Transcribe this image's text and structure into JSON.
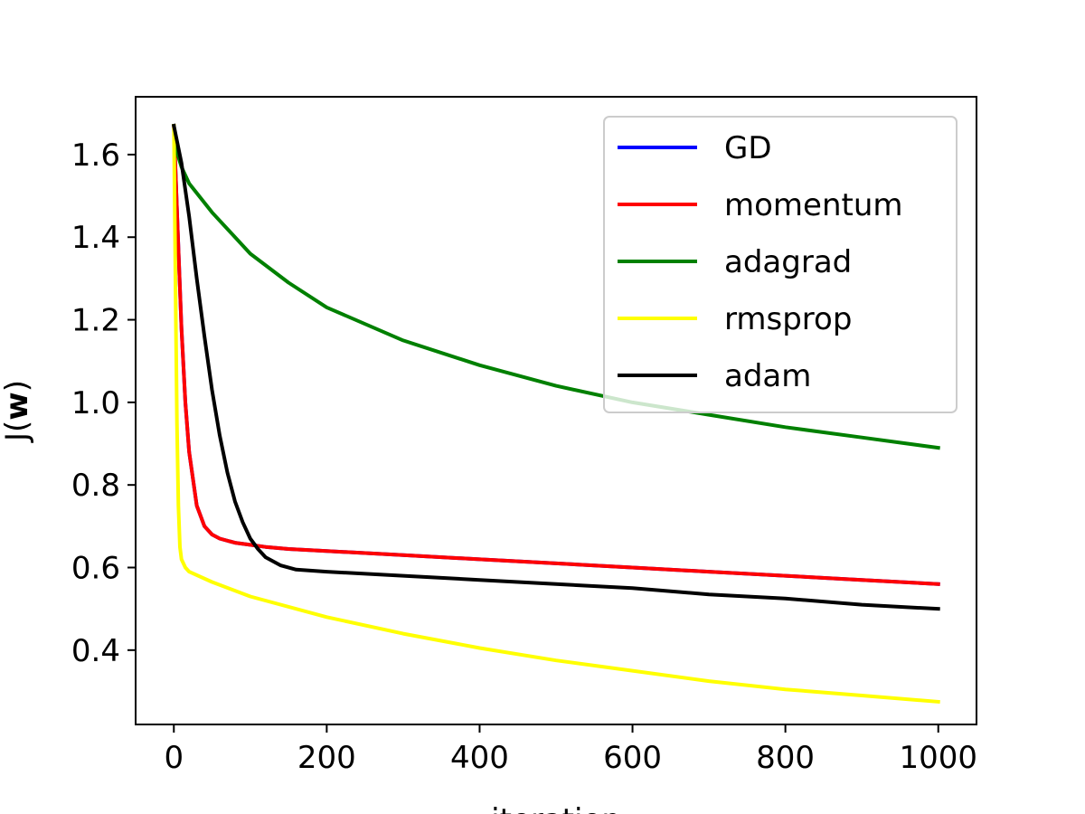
{
  "chart_data": {
    "type": "line",
    "xlabel": "iteration",
    "ylabel_prefix": "J(",
    "ylabel_bold": "w",
    "ylabel_suffix": ")",
    "xlim": [
      -50,
      1050
    ],
    "ylim": [
      0.22,
      1.74
    ],
    "xticks": [
      0,
      200,
      400,
      600,
      800,
      1000
    ],
    "xtick_labels": [
      "0",
      "200",
      "400",
      "600",
      "800",
      "1000"
    ],
    "yticks": [
      0.4,
      0.6,
      0.8,
      1.0,
      1.2,
      1.4,
      1.6
    ],
    "ytick_labels": [
      "0.4",
      "0.6",
      "0.8",
      "1.0",
      "1.2",
      "1.4",
      "1.6"
    ],
    "legend_position": "top-right",
    "grid": false,
    "series": [
      {
        "name": "GD",
        "color": "#0000ff",
        "x": [
          0,
          5,
          10,
          15,
          20,
          30,
          40,
          50,
          60,
          80,
          100,
          120,
          150,
          200,
          300,
          400,
          500,
          600,
          700,
          800,
          900,
          1000
        ],
        "values": [
          1.67,
          1.42,
          1.18,
          1.0,
          0.88,
          0.75,
          0.7,
          0.68,
          0.67,
          0.66,
          0.655,
          0.65,
          0.645,
          0.64,
          0.63,
          0.62,
          0.61,
          0.6,
          0.59,
          0.58,
          0.57,
          0.56
        ]
      },
      {
        "name": "momentum",
        "color": "#ff0000",
        "x": [
          0,
          5,
          10,
          15,
          20,
          30,
          40,
          50,
          60,
          80,
          100,
          120,
          150,
          200,
          300,
          400,
          500,
          600,
          700,
          800,
          900,
          1000
        ],
        "values": [
          1.67,
          1.42,
          1.18,
          1.0,
          0.88,
          0.75,
          0.7,
          0.68,
          0.67,
          0.66,
          0.655,
          0.65,
          0.645,
          0.64,
          0.63,
          0.62,
          0.61,
          0.6,
          0.59,
          0.58,
          0.57,
          0.56
        ]
      },
      {
        "name": "adagrad",
        "color": "#008000",
        "x": [
          0,
          5,
          10,
          20,
          50,
          100,
          150,
          200,
          300,
          400,
          500,
          600,
          700,
          800,
          900,
          1000
        ],
        "values": [
          1.67,
          1.6,
          1.57,
          1.53,
          1.46,
          1.36,
          1.29,
          1.23,
          1.15,
          1.09,
          1.04,
          1.0,
          0.97,
          0.94,
          0.915,
          0.89
        ]
      },
      {
        "name": "rmsprop",
        "color": "#ffff00",
        "x": [
          0,
          2,
          4,
          6,
          8,
          10,
          15,
          20,
          50,
          100,
          200,
          300,
          400,
          500,
          600,
          700,
          800,
          900,
          1000
        ],
        "values": [
          1.67,
          1.3,
          0.95,
          0.75,
          0.65,
          0.62,
          0.6,
          0.59,
          0.565,
          0.53,
          0.48,
          0.44,
          0.405,
          0.375,
          0.35,
          0.325,
          0.305,
          0.29,
          0.275
        ]
      },
      {
        "name": "adam",
        "color": "#000000",
        "x": [
          0,
          10,
          20,
          30,
          40,
          50,
          60,
          70,
          80,
          90,
          100,
          110,
          120,
          140,
          160,
          200,
          300,
          400,
          500,
          600,
          700,
          800,
          900,
          1000
        ],
        "values": [
          1.67,
          1.58,
          1.45,
          1.3,
          1.16,
          1.03,
          0.92,
          0.83,
          0.76,
          0.71,
          0.67,
          0.645,
          0.625,
          0.605,
          0.595,
          0.59,
          0.58,
          0.57,
          0.56,
          0.55,
          0.535,
          0.525,
          0.51,
          0.5
        ]
      }
    ]
  }
}
